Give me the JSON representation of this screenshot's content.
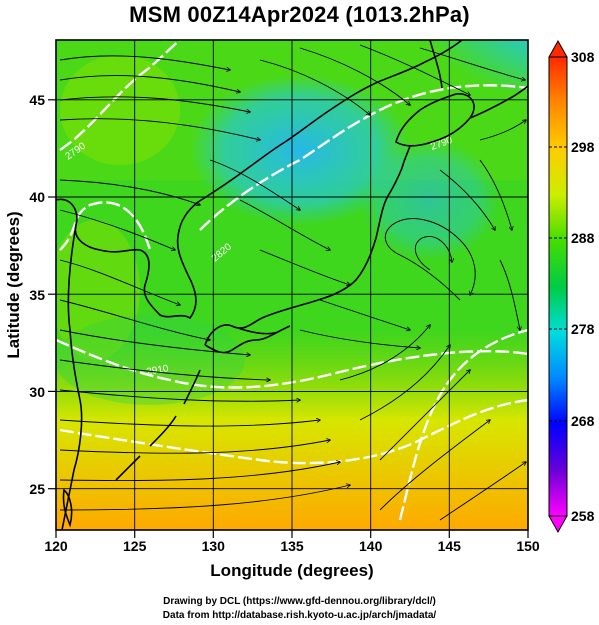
{
  "title": "MSM 00Z14Apr2024 (1013.2hPa)",
  "x_axis": {
    "label": "Longitude (degrees)",
    "ticks": [
      "120",
      "125",
      "130",
      "135",
      "140",
      "145",
      "150"
    ],
    "range": [
      120,
      150
    ]
  },
  "y_axis": {
    "label": "Latitude  (degrees)",
    "ticks": [
      "25",
      "30",
      "35",
      "40",
      "45"
    ],
    "range": [
      22.4,
      47.6
    ]
  },
  "colorbar": {
    "ticks": [
      "258",
      "268",
      "278",
      "288",
      "298",
      "308"
    ],
    "range": [
      258,
      308
    ],
    "colors": [
      "#ff00ff",
      "#6a00d8",
      "#0000ff",
      "#0088ff",
      "#00dddd",
      "#00cc44",
      "#44dd00",
      "#ccee00",
      "#ffcc00",
      "#ff8800",
      "#ff2a00"
    ]
  },
  "contour_labels": [
    "2790",
    "2820",
    "2790",
    "2910"
  ],
  "credits": {
    "line1": "Drawing by DCL (https://www.gfd-dennou.org/library/dcl/)",
    "line2": "Data from http://database.rish.kyoto-u.ac.jp/arch/jmadata/"
  }
}
